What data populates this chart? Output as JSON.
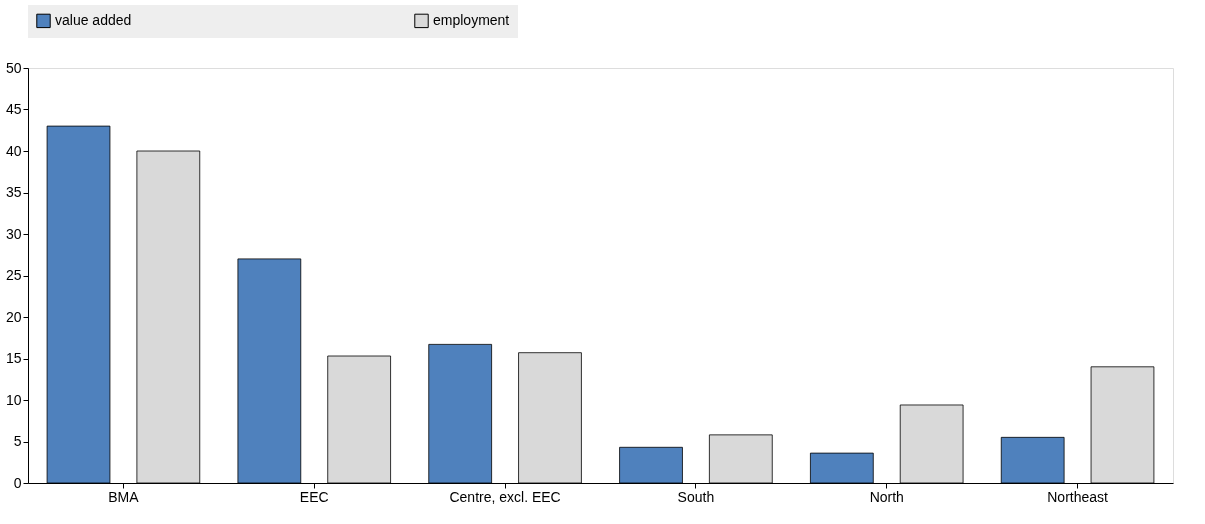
{
  "chart_data": {
    "type": "bar",
    "categories": [
      "BMA",
      "EEC",
      "Centre, excl. EEC",
      "South",
      "North",
      "Northeast"
    ],
    "series": [
      {
        "name": "value added",
        "color": "#4f81bd",
        "values": [
          43.0,
          27.0,
          16.7,
          4.3,
          3.6,
          5.5
        ]
      },
      {
        "name": "employment",
        "color": "#d9d9d9",
        "values": [
          40.0,
          15.3,
          15.7,
          5.8,
          9.4,
          14.0
        ]
      }
    ],
    "ylim": [
      0,
      50
    ],
    "yticks": [
      0,
      5,
      10,
      15,
      20,
      25,
      30,
      35,
      40,
      45,
      50
    ],
    "grid": false,
    "legend": "top"
  }
}
